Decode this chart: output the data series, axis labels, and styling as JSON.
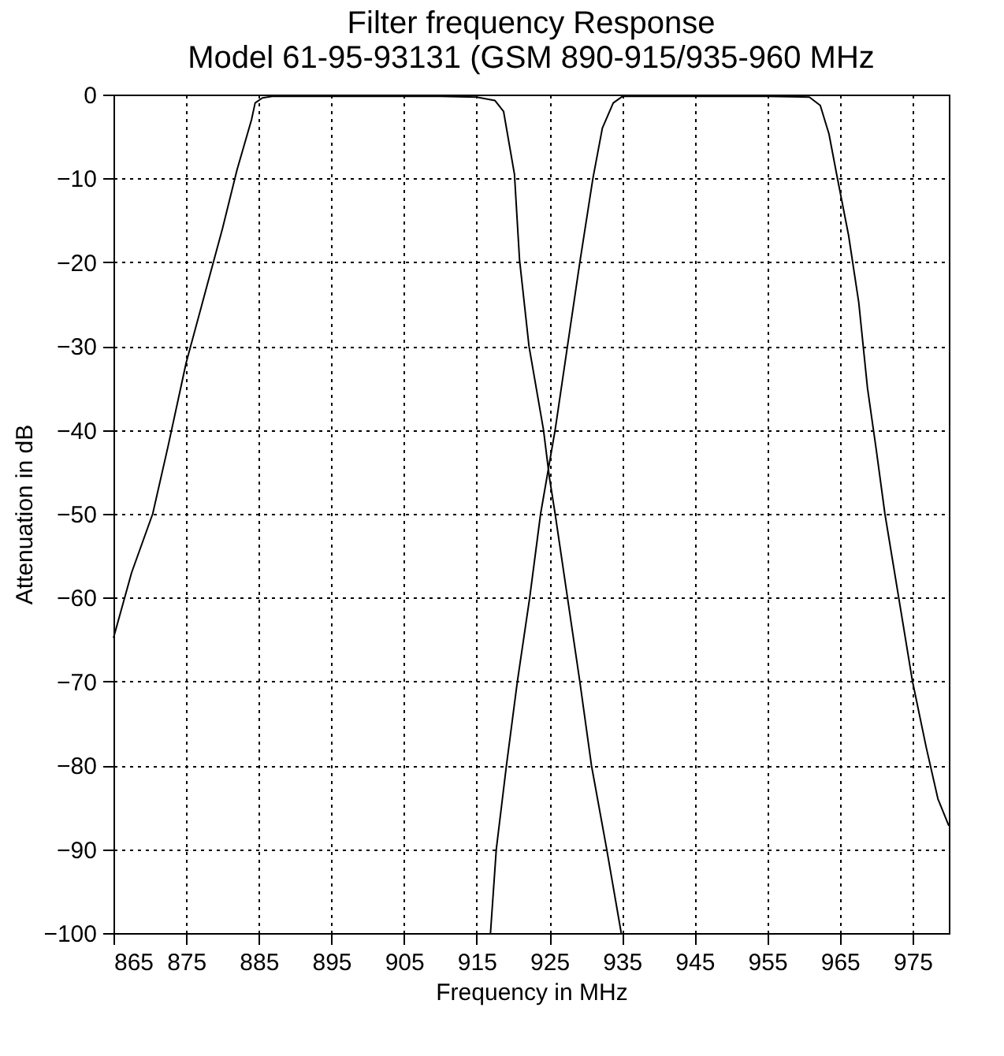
{
  "chart_data": {
    "type": "line",
    "title": [
      "Filter frequency Response",
      "Model 61-95-93131 (GSM 890-915/935-960 MHz"
    ],
    "xlabel": "Frequency in MHz",
    "ylabel": "Attenuation in dB",
    "xlim": [
      865,
      980
    ],
    "xticks": [
      865,
      875,
      885,
      895,
      905,
      915,
      925,
      935,
      945,
      955,
      965,
      975
    ],
    "ylim": [
      -100,
      0
    ],
    "yticks": [
      -100,
      -90,
      -80,
      -70,
      -60,
      -50,
      -40,
      -30,
      -20,
      -10,
      0
    ],
    "grid": true,
    "line_style": "solid",
    "marker": "none",
    "series": [
      {
        "color": "#000000",
        "x": [
          865,
          867.5,
          870.4,
          872.5,
          875,
          877.5,
          880,
          882,
          884,
          884.5,
          885.5,
          887,
          890,
          900,
          910,
          915,
          917.5,
          918.7,
          920.2,
          920.9,
          922.2,
          924.2,
          925,
          925.8,
          927.5,
          929.2,
          930.8,
          932.9,
          934.9
        ],
        "values": [
          -64.8,
          -57,
          -50,
          -42,
          -32,
          -24,
          -16,
          -9,
          -3,
          -1,
          -0.4,
          -0.2,
          -0.2,
          -0.2,
          -0.2,
          -0.3,
          -0.7,
          -2,
          -9.5,
          -19.7,
          -30,
          -40,
          -45.6,
          -50,
          -60,
          -70,
          -80,
          -90,
          -100
        ]
      },
      {
        "color": "#000000",
        "x": [
          916.9,
          917.7,
          919.1,
          920.6,
          922.3,
          923.8,
          925.8,
          927.5,
          929.2,
          931,
          932.3,
          933.8,
          935.1,
          945,
          955,
          960.8,
          962.3,
          963.5,
          964.6,
          966.2,
          967.6,
          968.8,
          970,
          971.2,
          973.1,
          975,
          976.9,
          978.5,
          980
        ],
        "values": [
          -100,
          -90,
          -80,
          -70,
          -60,
          -50,
          -40,
          -30,
          -20,
          -10,
          -4,
          -1,
          -0.2,
          -0.2,
          -0.2,
          -0.3,
          -1.3,
          -4.7,
          -9.7,
          -16.8,
          -24.8,
          -35,
          -42.3,
          -50,
          -60,
          -70,
          -77.9,
          -84,
          -87.2
        ]
      }
    ]
  }
}
